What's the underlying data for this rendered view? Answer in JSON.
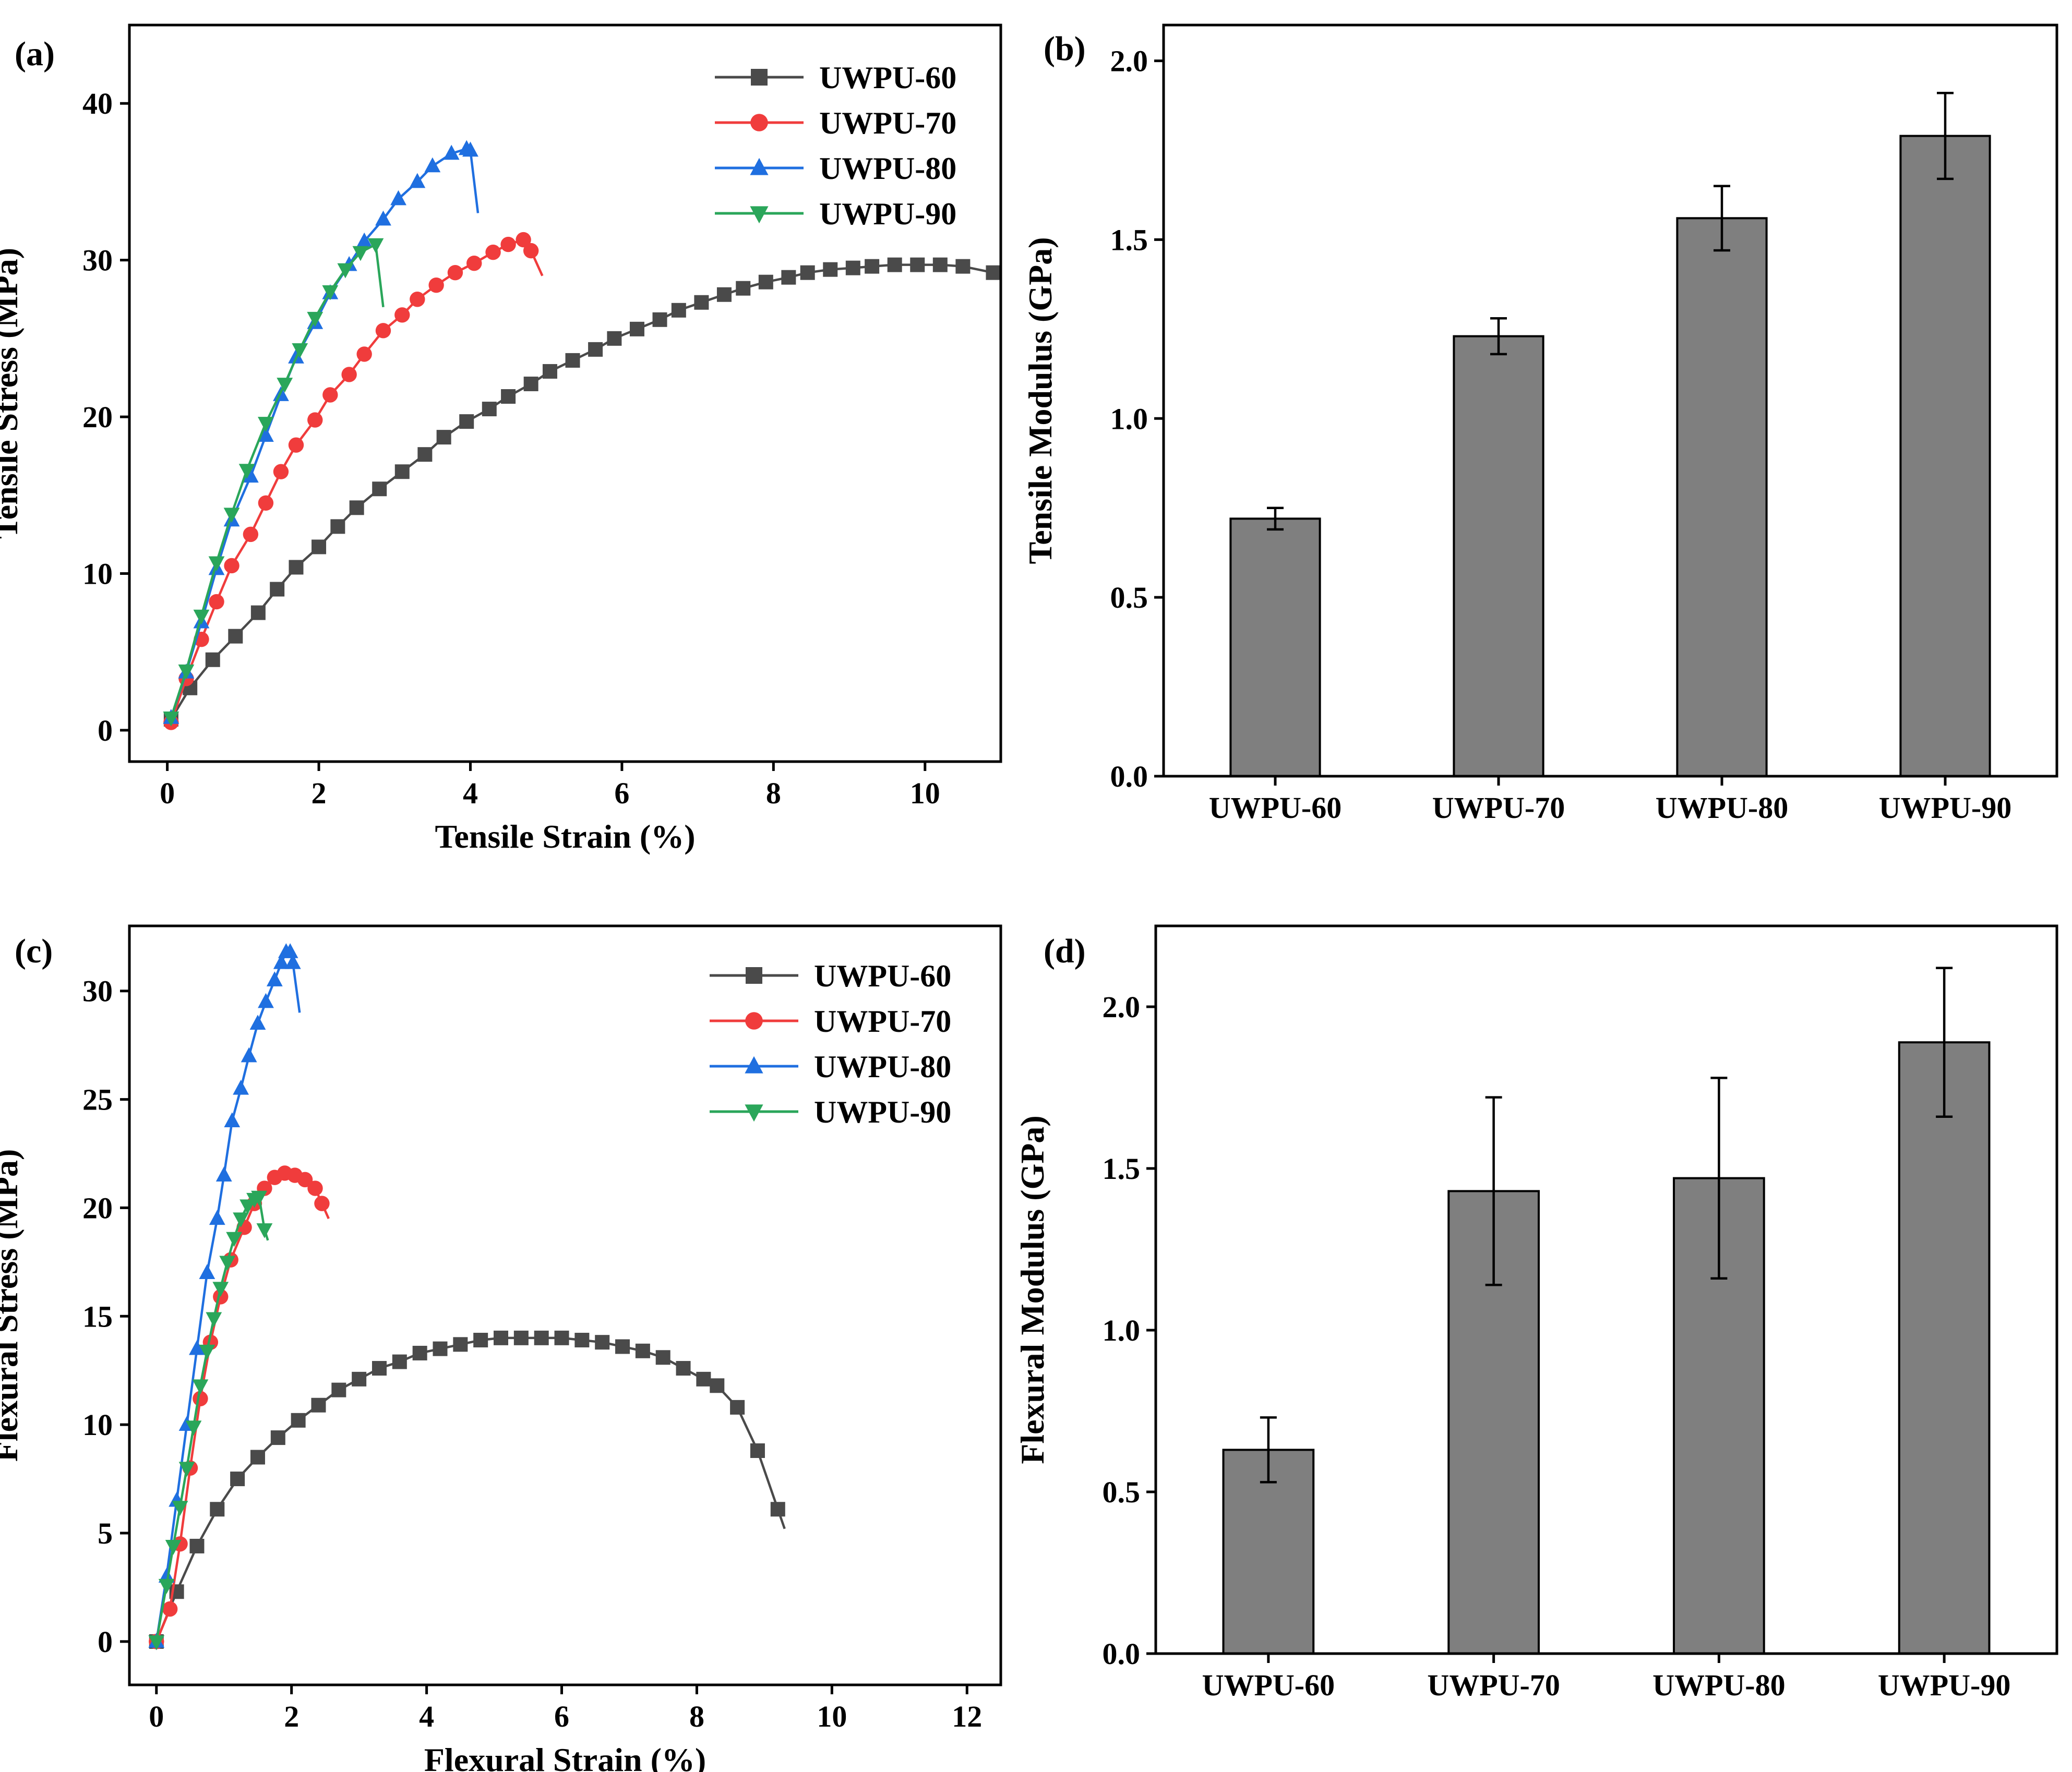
{
  "colors": {
    "UWPU-60": "#4a4a4a",
    "UWPU-70": "#f03c3c",
    "UWPU-80": "#1f6fe0",
    "UWPU-90": "#2aa65a",
    "bar_fill": "#7f7f7f"
  },
  "chart_data": [
    {
      "id": "a",
      "panel_label": "(a)",
      "type": "line",
      "xlabel": "Tensile Strain (%)",
      "ylabel": "Tensile Stress (MPa)",
      "xlim": [
        -0.5,
        11
      ],
      "ylim": [
        -2,
        45
      ],
      "xticks": [
        0,
        2,
        4,
        6,
        8,
        10
      ],
      "yticks": [
        0,
        10,
        20,
        30,
        40
      ],
      "tick_labels_x": [
        "0",
        "2",
        "4",
        "6",
        "8",
        "10"
      ],
      "tick_labels_y": [
        "0",
        "10",
        "20",
        "30",
        "40"
      ],
      "legend": [
        "UWPU-60",
        "UWPU-70",
        "UWPU-80",
        "UWPU-90"
      ],
      "series": [
        {
          "name": "UWPU-60",
          "marker": "square",
          "x": [
            0.05,
            0.3,
            0.6,
            0.9,
            1.2,
            1.45,
            1.7,
            2.0,
            2.25,
            2.5,
            2.8,
            3.1,
            3.4,
            3.65,
            3.95,
            4.25,
            4.5,
            4.8,
            5.05,
            5.35,
            5.65,
            5.9,
            6.2,
            6.5,
            6.75,
            7.05,
            7.35,
            7.6,
            7.9,
            8.2,
            8.45,
            8.75,
            9.05,
            9.3,
            9.6,
            9.9,
            10.2,
            10.5,
            10.9
          ],
          "y": [
            0.7,
            2.7,
            4.5,
            6.0,
            7.5,
            9.0,
            10.4,
            11.7,
            13.0,
            14.2,
            15.4,
            16.5,
            17.6,
            18.7,
            19.7,
            20.5,
            21.3,
            22.1,
            22.9,
            23.6,
            24.3,
            25.0,
            25.6,
            26.2,
            26.8,
            27.3,
            27.8,
            28.2,
            28.6,
            28.9,
            29.2,
            29.4,
            29.5,
            29.6,
            29.7,
            29.7,
            29.7,
            29.6,
            29.2
          ]
        },
        {
          "name": "UWPU-70",
          "marker": "circle",
          "x": [
            0.05,
            0.25,
            0.45,
            0.65,
            0.85,
            1.1,
            1.3,
            1.5,
            1.7,
            1.95,
            2.15,
            2.4,
            2.6,
            2.85,
            3.1,
            3.3,
            3.55,
            3.8,
            4.05,
            4.3,
            4.5,
            4.7,
            4.8
          ],
          "y": [
            0.5,
            3.3,
            5.8,
            8.2,
            10.5,
            12.5,
            14.5,
            16.5,
            18.2,
            19.8,
            21.4,
            22.7,
            24.0,
            25.5,
            26.5,
            27.5,
            28.4,
            29.2,
            29.8,
            30.5,
            31.0,
            31.3,
            30.6
          ],
          "x_end": 4.95,
          "y_end": 29.0
        },
        {
          "name": "UWPU-80",
          "marker": "triangle-up",
          "x": [
            0.05,
            0.25,
            0.45,
            0.65,
            0.85,
            1.1,
            1.3,
            1.5,
            1.7,
            1.95,
            2.15,
            2.4,
            2.6,
            2.85,
            3.05,
            3.3,
            3.5,
            3.75,
            3.95,
            4.0
          ],
          "y": [
            0.8,
            3.7,
            6.9,
            10.3,
            13.4,
            16.2,
            18.8,
            21.4,
            23.8,
            26.0,
            27.9,
            29.7,
            31.2,
            32.6,
            33.9,
            35.0,
            36.0,
            36.8,
            37.1,
            37.0
          ],
          "x_end": 4.1,
          "y_end": 33.0
        },
        {
          "name": "UWPU-90",
          "marker": "triangle-down",
          "x": [
            0.05,
            0.25,
            0.45,
            0.65,
            0.85,
            1.05,
            1.3,
            1.55,
            1.75,
            1.95,
            2.15,
            2.35,
            2.55,
            2.75
          ],
          "y": [
            0.8,
            3.8,
            7.3,
            10.7,
            13.8,
            16.6,
            19.6,
            22.1,
            24.3,
            26.3,
            28.0,
            29.4,
            30.5,
            31.0
          ],
          "x_end": 2.85,
          "y_end": 27.0
        }
      ]
    },
    {
      "id": "b",
      "panel_label": "(b)",
      "type": "bar",
      "ylabel": "Tensile Modulus (GPa)",
      "categories": [
        "UWPU-60",
        "UWPU-70",
        "UWPU-80",
        "UWPU-90"
      ],
      "values": [
        0.72,
        1.23,
        1.56,
        1.79
      ],
      "errors": [
        0.03,
        0.05,
        0.09,
        0.12
      ],
      "ylim": [
        0,
        2.1
      ],
      "yticks": [
        0.0,
        0.5,
        1.0,
        1.5,
        2.0
      ],
      "tick_labels_y": [
        "0.0",
        "0.5",
        "1.0",
        "1.5",
        "2.0"
      ]
    },
    {
      "id": "c",
      "panel_label": "(c)",
      "type": "line",
      "xlabel": "Flexural Strain (%)",
      "ylabel": "Flexural Stress (MPa)",
      "xlim": [
        -0.4,
        12.5
      ],
      "ylim": [
        -2,
        33
      ],
      "xticks": [
        0,
        2,
        4,
        6,
        8,
        10,
        12
      ],
      "yticks": [
        0,
        5,
        10,
        15,
        20,
        25,
        30
      ],
      "tick_labels_x": [
        "0",
        "2",
        "4",
        "6",
        "8",
        "10",
        "12"
      ],
      "tick_labels_y": [
        "0",
        "5",
        "10",
        "15",
        "20",
        "25",
        "30"
      ],
      "legend": [
        "UWPU-60",
        "UWPU-70",
        "UWPU-80",
        "UWPU-90"
      ],
      "series": [
        {
          "name": "UWPU-60",
          "marker": "square",
          "x": [
            0.0,
            0.3,
            0.6,
            0.9,
            1.2,
            1.5,
            1.8,
            2.1,
            2.4,
            2.7,
            3.0,
            3.3,
            3.6,
            3.9,
            4.2,
            4.5,
            4.8,
            5.1,
            5.4,
            5.7,
            6.0,
            6.3,
            6.6,
            6.9,
            7.2,
            7.5,
            7.8,
            8.1,
            8.3,
            8.6,
            8.9,
            9.2
          ],
          "y": [
            0.0,
            2.3,
            4.4,
            6.1,
            7.5,
            8.5,
            9.4,
            10.2,
            10.9,
            11.6,
            12.1,
            12.6,
            12.9,
            13.3,
            13.5,
            13.7,
            13.9,
            14.0,
            14.0,
            14.0,
            14.0,
            13.9,
            13.8,
            13.6,
            13.4,
            13.1,
            12.6,
            12.1,
            11.8,
            10.8,
            8.8,
            6.1
          ],
          "x_end": 9.3,
          "y_end": 5.2
        },
        {
          "name": "UWPU-70",
          "marker": "circle",
          "x": [
            0.0,
            0.2,
            0.35,
            0.5,
            0.65,
            0.8,
            0.95,
            1.1,
            1.3,
            1.45,
            1.6,
            1.75,
            1.9,
            2.05,
            2.2,
            2.35,
            2.45
          ],
          "y": [
            0.0,
            1.5,
            4.5,
            8.0,
            11.2,
            13.8,
            15.9,
            17.6,
            19.1,
            20.2,
            20.9,
            21.4,
            21.6,
            21.5,
            21.3,
            20.9,
            20.2
          ],
          "x_end": 2.55,
          "y_end": 19.5
        },
        {
          "name": "UWPU-80",
          "marker": "triangle-up",
          "x": [
            0.0,
            0.15,
            0.3,
            0.45,
            0.6,
            0.75,
            0.9,
            1.0,
            1.12,
            1.25,
            1.37,
            1.5,
            1.62,
            1.75,
            1.85,
            1.92,
            1.98,
            2.02
          ],
          "y": [
            0.0,
            3.0,
            6.5,
            10.0,
            13.5,
            17.0,
            19.5,
            21.5,
            24.0,
            25.5,
            27.0,
            28.5,
            29.5,
            30.5,
            31.3,
            31.8,
            31.8,
            31.3
          ],
          "x_end": 2.12,
          "y_end": 29.0
        },
        {
          "name": "UWPU-90",
          "marker": "triangle-down",
          "x": [
            0.0,
            0.15,
            0.25,
            0.35,
            0.45,
            0.55,
            0.65,
            0.75,
            0.85,
            0.95,
            1.05,
            1.15,
            1.25,
            1.35,
            1.45,
            1.52,
            1.6
          ],
          "y": [
            0.0,
            2.6,
            4.4,
            6.2,
            8.0,
            9.9,
            11.8,
            13.4,
            14.9,
            16.3,
            17.5,
            18.6,
            19.5,
            20.1,
            20.4,
            20.5,
            19.0
          ],
          "x_end": 1.65,
          "y_end": 18.5
        }
      ]
    },
    {
      "id": "d",
      "panel_label": "(d)",
      "type": "bar",
      "ylabel": "Flexural Modulus (GPa)",
      "categories": [
        "UWPU-60",
        "UWPU-70",
        "UWPU-80",
        "UWPU-90"
      ],
      "values": [
        0.63,
        1.43,
        1.47,
        1.89
      ],
      "errors": [
        0.1,
        0.29,
        0.31,
        0.23
      ],
      "ylim": [
        0,
        2.25
      ],
      "yticks": [
        0.0,
        0.5,
        1.0,
        1.5,
        2.0
      ],
      "tick_labels_y": [
        "0.0",
        "0.5",
        "1.0",
        "1.5",
        "2.0"
      ]
    }
  ]
}
